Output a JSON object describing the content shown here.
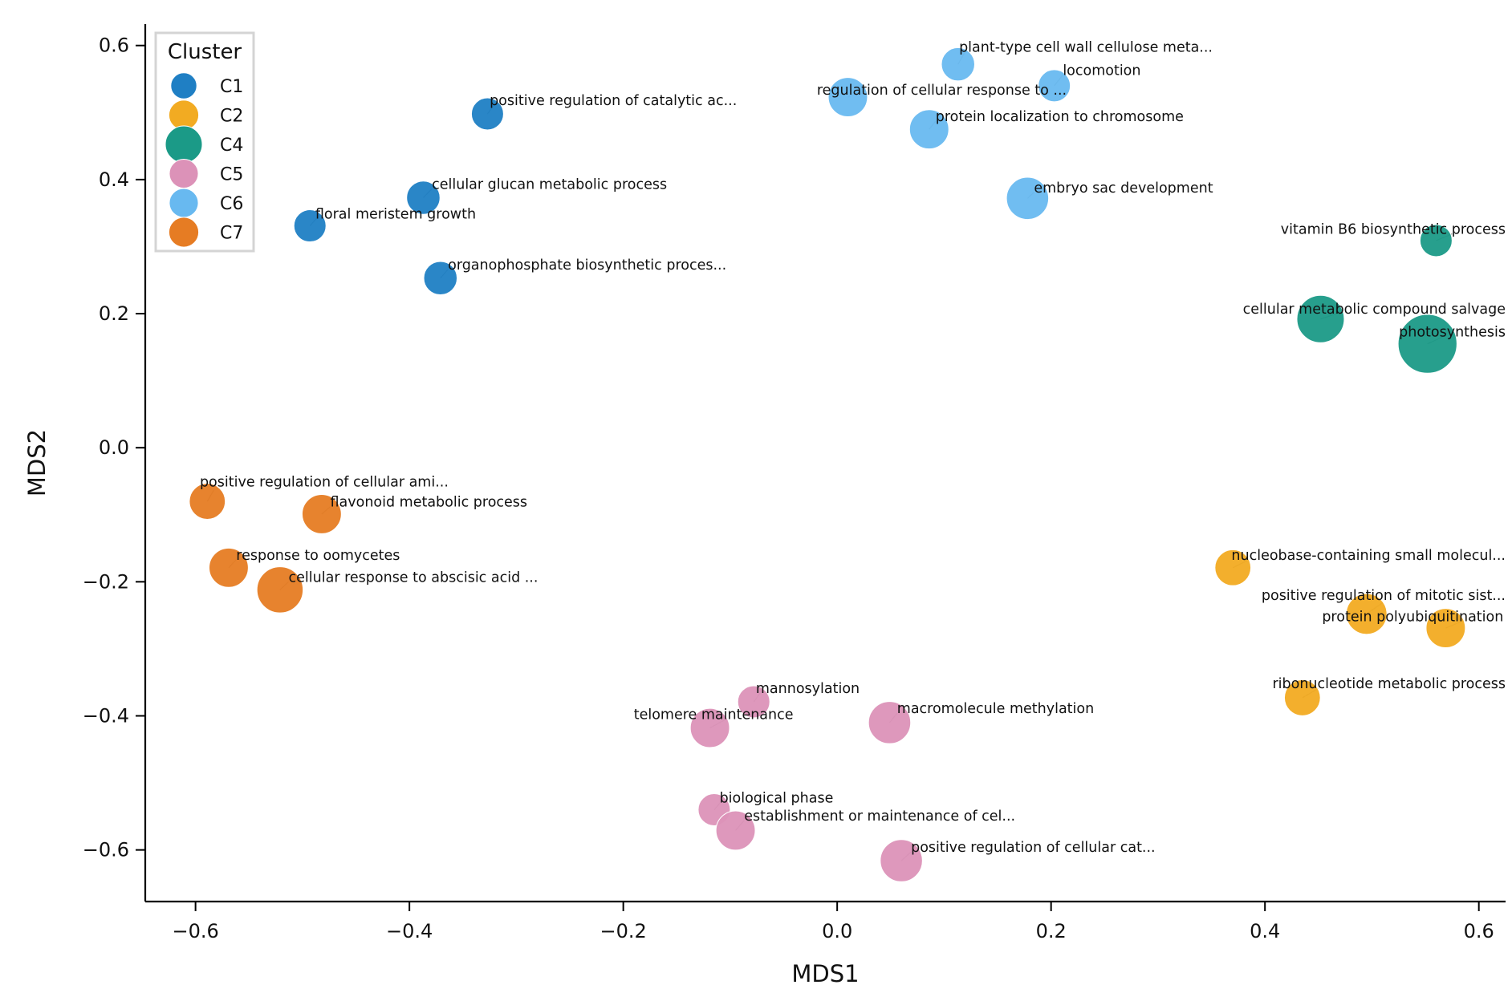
{
  "chart_data": {
    "type": "scatter",
    "title": "",
    "xlabel": "MDS1",
    "ylabel": "MDS2",
    "xlim": [
      -0.647,
      0.625
    ],
    "ylim": [
      -0.677,
      0.632
    ],
    "xticks": [
      -0.6,
      -0.4,
      -0.2,
      0.0,
      0.2,
      0.4,
      0.6
    ],
    "xtick_labels": [
      "−0.6",
      "−0.4",
      "−0.2",
      "0.0",
      "0.2",
      "0.4",
      "0.6"
    ],
    "yticks": [
      0.6,
      0.4,
      0.2,
      0.0,
      -0.2,
      -0.4,
      -0.6
    ],
    "ytick_labels": [
      "0.6",
      "0.4",
      "0.2",
      "0.0",
      "−0.2",
      "−0.4",
      "−0.6"
    ],
    "grid": false,
    "legend": {
      "title": "Cluster",
      "position": "top-left",
      "entries": [
        {
          "label": "C1",
          "color": "#1f7fc4",
          "size": 0.3
        },
        {
          "label": "C2",
          "color": "#f2ab22",
          "size": 0.5
        },
        {
          "label": "C4",
          "color": "#1b9a87",
          "size": 1.0
        },
        {
          "label": "C5",
          "color": "#dc92b8",
          "size": 0.45
        },
        {
          "label": "C6",
          "color": "#68b9f0",
          "size": 0.45
        },
        {
          "label": "C7",
          "color": "#e67c23",
          "size": 0.5
        }
      ]
    },
    "series": [
      {
        "name": "C1",
        "color": "#1f7fc4",
        "points": [
          {
            "x": -0.327,
            "y": 0.498,
            "size": 0.25,
            "label": "positive regulation of catalytic ac...",
            "lx": -0.325,
            "ly": 0.511,
            "anchor": "start"
          },
          {
            "x": -0.387,
            "y": 0.373,
            "size": 0.28,
            "label": "cellular glucan metabolic process",
            "lx": -0.379,
            "ly": 0.386,
            "anchor": "start"
          },
          {
            "x": -0.493,
            "y": 0.331,
            "size": 0.25,
            "label": "floral meristem growth",
            "lx": -0.488,
            "ly": 0.342,
            "anchor": "start"
          },
          {
            "x": -0.371,
            "y": 0.253,
            "size": 0.28,
            "label": "organophosphate biosynthetic proces...",
            "lx": -0.364,
            "ly": 0.266,
            "anchor": "start"
          }
        ]
      },
      {
        "name": "C6",
        "color": "#68b9f0",
        "points": [
          {
            "x": 0.113,
            "y": 0.572,
            "size": 0.28,
            "label": "plant-type cell wall cellulose meta...",
            "lx": 0.114,
            "ly": 0.591,
            "anchor": "start"
          },
          {
            "x": 0.203,
            "y": 0.54,
            "size": 0.25,
            "label": "locomotion",
            "lx": 0.211,
            "ly": 0.556,
            "anchor": "start"
          },
          {
            "x": 0.01,
            "y": 0.523,
            "size": 0.45,
            "label": "regulation of cellular response to ...",
            "lx": -0.019,
            "ly": 0.527,
            "anchor": "start"
          },
          {
            "x": 0.086,
            "y": 0.475,
            "size": 0.45,
            "label": "protein localization to chromosome",
            "lx": 0.092,
            "ly": 0.487,
            "anchor": "start"
          },
          {
            "x": 0.178,
            "y": 0.372,
            "size": 0.55,
            "label": "embryo sac development",
            "lx": 0.184,
            "ly": 0.381,
            "anchor": "start"
          }
        ]
      },
      {
        "name": "C4",
        "color": "#1b9a87",
        "points": [
          {
            "x": 0.56,
            "y": 0.309,
            "size": 0.25,
            "label": "vitamin B6 biosynthetic process",
            "lx": 0.625,
            "ly": 0.319,
            "anchor": "end"
          },
          {
            "x": 0.452,
            "y": 0.192,
            "size": 0.75,
            "label": "cellular metabolic compound salvage",
            "lx": 0.625,
            "ly": 0.2,
            "anchor": "end"
          },
          {
            "x": 0.552,
            "y": 0.155,
            "size": 1.3,
            "label": "photosynthesis",
            "lx": 0.625,
            "ly": 0.166,
            "anchor": "end"
          }
        ]
      },
      {
        "name": "C7",
        "color": "#e67c23",
        "points": [
          {
            "x": -0.589,
            "y": -0.08,
            "size": 0.35,
            "label": "positive regulation of cellular ami...",
            "lx": -0.596,
            "ly": -0.058,
            "anchor": "start"
          },
          {
            "x": -0.482,
            "y": -0.099,
            "size": 0.45,
            "label": "flavonoid metabolic process",
            "lx": -0.474,
            "ly": -0.088,
            "anchor": "start"
          },
          {
            "x": -0.569,
            "y": -0.179,
            "size": 0.45,
            "label": "response to oomycetes",
            "lx": -0.562,
            "ly": -0.167,
            "anchor": "start"
          },
          {
            "x": -0.521,
            "y": -0.212,
            "size": 0.7,
            "label": "cellular response to abscisic acid ...",
            "lx": -0.513,
            "ly": -0.2,
            "anchor": "start"
          }
        ]
      },
      {
        "name": "C2",
        "color": "#f2ab22",
        "points": [
          {
            "x": 0.37,
            "y": -0.179,
            "size": 0.35,
            "label": "nucleobase-containing small molecul...",
            "lx": 0.625,
            "ly": -0.167,
            "anchor": "end"
          },
          {
            "x": 0.495,
            "y": -0.248,
            "size": 0.5,
            "label": "positive regulation of mitotic sist...",
            "lx": 0.625,
            "ly": -0.227,
            "anchor": "end"
          },
          {
            "x": 0.569,
            "y": -0.269,
            "size": 0.45,
            "label": "protein polyubiquitination",
            "lx": 0.623,
            "ly": -0.259,
            "anchor": "end"
          },
          {
            "x": 0.435,
            "y": -0.373,
            "size": 0.35,
            "label": "ribonucleotide metabolic process",
            "lx": 0.625,
            "ly": -0.359,
            "anchor": "end"
          }
        ]
      },
      {
        "name": "C5",
        "color": "#dc92b8",
        "points": [
          {
            "x": -0.078,
            "y": -0.379,
            "size": 0.25,
            "label": "mannosylation",
            "lx": -0.076,
            "ly": -0.366,
            "anchor": "start"
          },
          {
            "x": -0.119,
            "y": -0.418,
            "size": 0.45,
            "label": "telomere maintenance",
            "lx": -0.041,
            "ly": -0.405,
            "anchor": "end"
          },
          {
            "x": 0.049,
            "y": -0.41,
            "size": 0.55,
            "label": "macromolecule methylation",
            "lx": 0.056,
            "ly": -0.396,
            "anchor": "start"
          },
          {
            "x": -0.115,
            "y": -0.54,
            "size": 0.25,
            "label": "biological phase",
            "lx": -0.11,
            "ly": -0.529,
            "anchor": "start"
          },
          {
            "x": -0.095,
            "y": -0.571,
            "size": 0.45,
            "label": "establishment or maintenance of cel...",
            "lx": -0.087,
            "ly": -0.556,
            "anchor": "start"
          },
          {
            "x": 0.06,
            "y": -0.616,
            "size": 0.55,
            "label": "positive regulation of cellular cat...",
            "lx": 0.069,
            "ly": -0.603,
            "anchor": "start"
          }
        ]
      }
    ]
  }
}
